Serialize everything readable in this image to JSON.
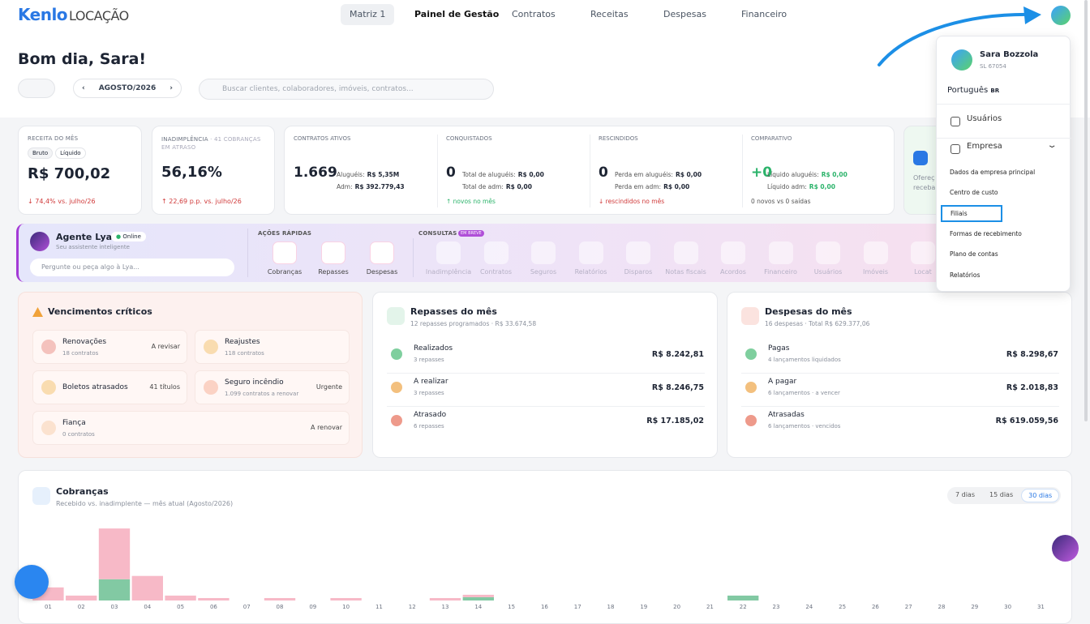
{
  "header": {
    "logo_brand": "Kenlo",
    "logo_product": "LOCAÇÃO",
    "nav": [
      "Matriz 1",
      "Painel de Gestão",
      "Contratos",
      "Receitas",
      "Despesas",
      "Financeiro"
    ]
  },
  "greeting": "Bom dia, Sara!",
  "period": "AGOSTO/2026",
  "search_placeholder": "Buscar clientes, colaboradores, imóveis, contratos...",
  "kpis": {
    "receita": {
      "label": "RECEITA DO MÊS",
      "toggles": [
        "Bruto",
        "Líquido"
      ],
      "value": "R$ 700,02",
      "delta": "↓ 74,4% vs. julho/26"
    },
    "inadimplencia": {
      "label": "INADIMPLÊNCIA",
      "note": "· 41 COBRANÇAS EM ATRASO",
      "value": "56,16%",
      "delta": "↑ 22,69 p.p. vs. julho/26"
    },
    "contratos": [
      {
        "label": "CONTRATOS ATIVOS",
        "value": "1.669",
        "lines": [
          {
            "label": "Aluguéis:",
            "value": "R$ 5,35M"
          },
          {
            "label": "Adm:",
            "value": "R$ 392.779,43"
          }
        ]
      },
      {
        "label": "CONQUISTADOS",
        "value": "0",
        "lines": [
          {
            "label": "Total de aluguéis:",
            "value": "R$ 0,00"
          },
          {
            "label": "Total de adm:",
            "value": "R$ 0,00"
          }
        ],
        "foot": "↑ novos no mês"
      },
      {
        "label": "RESCINDIDOS",
        "value": "0",
        "lines": [
          {
            "label": "Perda em aluguéis:",
            "value": "R$ 0,00"
          },
          {
            "label": "Perda em adm:",
            "value": "R$ 0,00"
          }
        ],
        "foot": "↓ rescindidos no mês"
      },
      {
        "label": "COMPARATIVO",
        "value": "+0",
        "lines": [
          {
            "label": "Líquido aluguéis:",
            "value": "R$ 0,00"
          },
          {
            "label": "Líquido adm:",
            "value": "R$ 0,00"
          }
        ],
        "foot": "0 novos vs 0 saídas"
      }
    ],
    "partial": [
      "Ofereç",
      "receba"
    ]
  },
  "agent": {
    "name": "Agente Lya",
    "status": "Online",
    "subtitle": "Seu assistente inteligente",
    "input_placeholder": "Pergunte ou peça algo à Lya...",
    "quick_label": "AÇÕES RÁPIDAS",
    "quick": [
      "Cobranças",
      "Repasses",
      "Despesas"
    ],
    "consult_label": "CONSULTAS",
    "badge": "EM BREVE",
    "consult": [
      "Inadimplência",
      "Contratos",
      "Seguros",
      "Relatórios",
      "Disparos",
      "Notas fiscais",
      "Acordos",
      "Financeiro",
      "Usuários",
      "Imóveis",
      "Locat"
    ]
  },
  "vencimentos": {
    "title": "Vencimentos críticos",
    "items": [
      {
        "title": "Renovações",
        "sub": "18 contratos",
        "tag": "A revisar"
      },
      {
        "title": "Reajustes",
        "sub": "118 contratos"
      },
      {
        "title": "Boletos atrasados",
        "tag": "41 títulos"
      },
      {
        "title": "Seguro incêndio",
        "sub": "1.099 contratos a renovar",
        "tag": "Urgente"
      },
      {
        "title": "Fiança",
        "sub": "0 contratos",
        "tag": "A renovar"
      }
    ]
  },
  "repasses": {
    "title": "Repasses do mês",
    "subtitle": "12 repasses programados · R$ 33.674,58",
    "rows": [
      {
        "title": "Realizados",
        "sub": "3 repasses",
        "value": "R$ 8.242,81"
      },
      {
        "title": "A realizar",
        "sub": "3 repasses",
        "value": "R$ 8.246,75"
      },
      {
        "title": "Atrasado",
        "sub": "6 repasses",
        "value": "R$ 17.185,02"
      }
    ]
  },
  "despesas": {
    "title": "Despesas do mês",
    "subtitle": "16 despesas · Total R$ 629.377,06",
    "rows": [
      {
        "title": "Pagas",
        "sub": "4 lançamentos liquidados",
        "value": "R$ 8.298,67"
      },
      {
        "title": "A pagar",
        "sub": "6 lançamentos · a vencer",
        "value": "R$ 2.018,83"
      },
      {
        "title": "Atrasadas",
        "sub": "6 lançamentos · vencidos",
        "value": "R$ 619.059,56"
      }
    ]
  },
  "cobrancas": {
    "title": "Cobranças",
    "subtitle": "Recebido vs. inadimplente — mês atual (Agosto/2026)",
    "ranges": [
      "7 dias",
      "15 dias",
      "30 dias"
    ],
    "chart": {
      "type": "bar",
      "stacked": true,
      "ylim": [
        0,
        100
      ],
      "categories": [
        "01",
        "02",
        "03",
        "04",
        "05",
        "06",
        "07",
        "08",
        "09",
        "10",
        "11",
        "12",
        "13",
        "14",
        "15",
        "16",
        "17",
        "18",
        "19",
        "20",
        "21",
        "22",
        "23",
        "24",
        "25",
        "26",
        "27",
        "28",
        "29",
        "30",
        "31"
      ],
      "series": [
        {
          "color": "#82c9a3",
          "values": [
            0,
            0,
            26,
            0,
            0,
            0,
            0,
            0,
            0,
            0,
            0,
            0,
            0,
            4,
            0,
            0,
            0,
            0,
            0,
            0,
            0,
            6,
            0,
            0,
            0,
            0,
            0,
            0,
            0,
            0,
            0
          ]
        },
        {
          "color": "#f7b9c7",
          "values": [
            16,
            6,
            62,
            30,
            6,
            3,
            0,
            3,
            0,
            3,
            0,
            0,
            3,
            3,
            0,
            0,
            0,
            0,
            0,
            0,
            0,
            0,
            0,
            0,
            0,
            0,
            0,
            0,
            0,
            0,
            0
          ]
        }
      ]
    }
  },
  "user_menu": {
    "name": "Sara Bozzola",
    "id": "SL 67054",
    "language": "Português",
    "lang_badge": "BR",
    "items": [
      "Usuários",
      "Empresa"
    ],
    "submenu": [
      "Dados da empresa principal",
      "Centro de custo",
      "Filiais",
      "Formas de recebimento",
      "Plano de contas",
      "Relatórios"
    ]
  }
}
